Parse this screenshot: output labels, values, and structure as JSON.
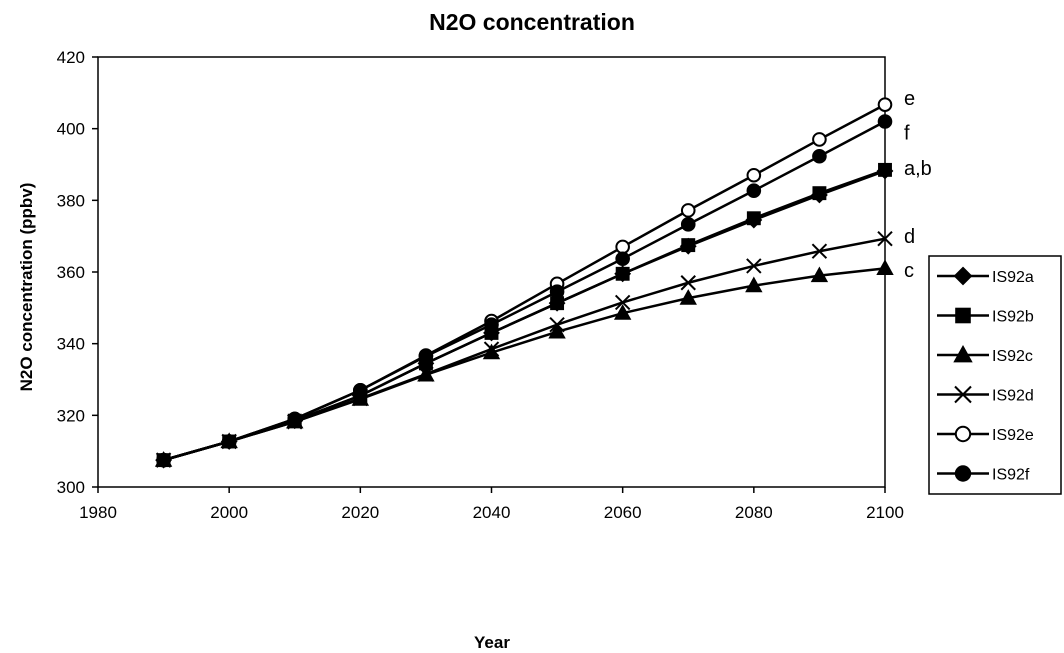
{
  "chart_data": {
    "type": "line",
    "title": "N2O concentration",
    "xlabel": "Year",
    "ylabel": "N2O concentration (ppbv)",
    "xlim": [
      1980,
      2100
    ],
    "ylim": [
      300,
      420
    ],
    "xticks": [
      1980,
      2000,
      2020,
      2040,
      2060,
      2080,
      2100
    ],
    "yticks": [
      300,
      320,
      340,
      360,
      380,
      400,
      420
    ],
    "grid": false,
    "legend_position": "right",
    "x": [
      1990,
      2000,
      2010,
      2020,
      2030,
      2040,
      2050,
      2060,
      2070,
      2080,
      2090,
      2100
    ],
    "series": [
      {
        "name": "IS92a",
        "marker": "diamond-filled",
        "values": [
          307.5,
          312.7,
          318.5,
          325.5,
          334.5,
          343.0,
          351.3,
          359.5,
          367.2,
          374.5,
          381.5,
          388.2
        ]
      },
      {
        "name": "IS92b",
        "marker": "square-filled",
        "values": [
          307.5,
          312.7,
          318.5,
          325.5,
          334.5,
          343.0,
          351.3,
          359.5,
          367.5,
          375.0,
          382.0,
          388.5
        ]
      },
      {
        "name": "IS92c",
        "marker": "triangle-filled",
        "values": [
          307.5,
          312.7,
          318.2,
          324.5,
          331.3,
          337.5,
          343.3,
          348.5,
          352.7,
          356.2,
          359.0,
          361.0
        ]
      },
      {
        "name": "IS92d",
        "marker": "x",
        "values": [
          307.5,
          312.7,
          318.2,
          324.7,
          331.5,
          338.5,
          345.3,
          351.5,
          357.0,
          361.7,
          365.8,
          369.3
        ]
      },
      {
        "name": "IS92e",
        "marker": "circle-open",
        "values": [
          307.5,
          312.7,
          319.0,
          327.0,
          336.7,
          346.3,
          356.7,
          367.0,
          377.2,
          387.0,
          397.0,
          406.7
        ]
      },
      {
        "name": "IS92f",
        "marker": "circle-filled",
        "values": [
          307.5,
          312.7,
          319.0,
          327.0,
          336.5,
          345.3,
          354.5,
          363.7,
          373.3,
          382.7,
          392.3,
          402.0
        ]
      }
    ],
    "annotations": [
      {
        "text": "e",
        "y": 408.5
      },
      {
        "text": "f",
        "y": 399.0
      },
      {
        "text": "a,b",
        "y": 389.0
      },
      {
        "text": "d",
        "y": 370.0
      },
      {
        "text": "c",
        "y": 360.5
      }
    ]
  }
}
